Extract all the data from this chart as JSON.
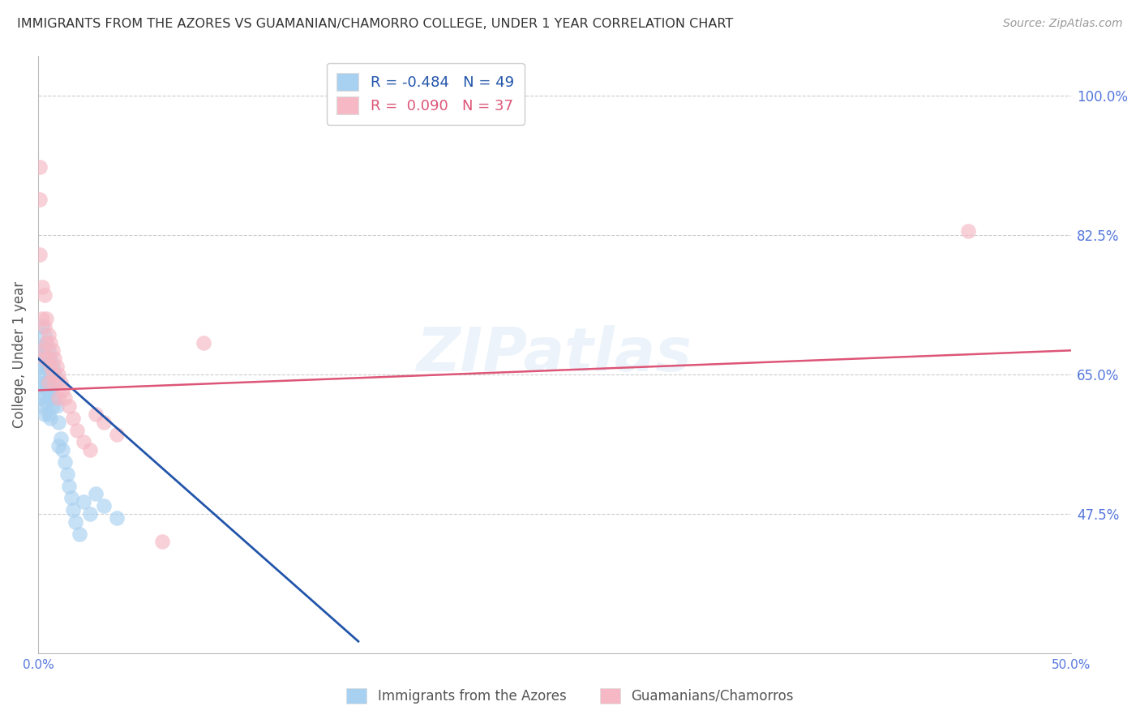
{
  "title": "IMMIGRANTS FROM THE AZORES VS GUAMANIAN/CHAMORRO COLLEGE, UNDER 1 YEAR CORRELATION CHART",
  "source": "Source: ZipAtlas.com",
  "ylabel": "College, Under 1 year",
  "xmin": 0.0,
  "xmax": 0.5,
  "ymin": 0.3,
  "ymax": 1.05,
  "yticks": [
    0.475,
    0.65,
    0.825,
    1.0
  ],
  "ytick_labels": [
    "47.5%",
    "65.0%",
    "82.5%",
    "100.0%"
  ],
  "xticks": [
    0.0,
    0.1,
    0.2,
    0.3,
    0.4,
    0.5
  ],
  "xtick_labels": [
    "0.0%",
    "",
    "",
    "",
    "",
    "50.0%"
  ],
  "r_blue": -0.484,
  "n_blue": 49,
  "r_pink": 0.09,
  "n_pink": 37,
  "legend_label_blue": "Immigrants from the Azores",
  "legend_label_pink": "Guamanians/Chamorros",
  "watermark": "ZIPatlas",
  "blue_color": "#A8D0F0",
  "pink_color": "#F5B8C4",
  "blue_line_color": "#2255AA",
  "pink_line_color": "#DD5577",
  "axis_color": "#5577DD",
  "title_color": "#333333",
  "grid_color": "#CCCCCC",
  "blue_scatter_x": [
    0.001,
    0.001,
    0.001,
    0.001,
    0.002,
    0.002,
    0.002,
    0.002,
    0.002,
    0.003,
    0.003,
    0.003,
    0.003,
    0.003,
    0.004,
    0.004,
    0.004,
    0.004,
    0.005,
    0.005,
    0.005,
    0.005,
    0.006,
    0.006,
    0.006,
    0.006,
    0.007,
    0.007,
    0.007,
    0.008,
    0.008,
    0.009,
    0.009,
    0.01,
    0.01,
    0.011,
    0.012,
    0.013,
    0.014,
    0.015,
    0.016,
    0.017,
    0.018,
    0.02,
    0.022,
    0.025,
    0.028,
    0.032,
    0.038
  ],
  "blue_scatter_y": [
    0.68,
    0.66,
    0.64,
    0.62,
    0.71,
    0.685,
    0.66,
    0.635,
    0.61,
    0.7,
    0.675,
    0.65,
    0.625,
    0.6,
    0.69,
    0.665,
    0.64,
    0.615,
    0.68,
    0.655,
    0.63,
    0.6,
    0.67,
    0.645,
    0.62,
    0.595,
    0.66,
    0.635,
    0.61,
    0.65,
    0.62,
    0.64,
    0.61,
    0.59,
    0.56,
    0.57,
    0.555,
    0.54,
    0.525,
    0.51,
    0.495,
    0.48,
    0.465,
    0.45,
    0.49,
    0.475,
    0.5,
    0.485,
    0.47
  ],
  "pink_scatter_x": [
    0.001,
    0.001,
    0.001,
    0.002,
    0.002,
    0.002,
    0.003,
    0.003,
    0.003,
    0.004,
    0.004,
    0.005,
    0.005,
    0.005,
    0.006,
    0.006,
    0.007,
    0.007,
    0.008,
    0.008,
    0.009,
    0.01,
    0.01,
    0.011,
    0.012,
    0.013,
    0.015,
    0.017,
    0.019,
    0.022,
    0.025,
    0.028,
    0.032,
    0.038,
    0.06,
    0.08,
    0.45
  ],
  "pink_scatter_y": [
    0.91,
    0.87,
    0.8,
    0.76,
    0.72,
    0.68,
    0.75,
    0.71,
    0.67,
    0.72,
    0.69,
    0.7,
    0.67,
    0.64,
    0.69,
    0.66,
    0.68,
    0.65,
    0.67,
    0.64,
    0.66,
    0.65,
    0.62,
    0.64,
    0.63,
    0.62,
    0.61,
    0.595,
    0.58,
    0.565,
    0.555,
    0.6,
    0.59,
    0.575,
    0.44,
    0.69,
    0.83
  ],
  "blue_line_x": [
    0.0,
    0.155
  ],
  "blue_line_y": [
    0.67,
    0.315
  ],
  "pink_line_x": [
    0.0,
    0.5
  ],
  "pink_line_y": [
    0.63,
    0.68
  ]
}
